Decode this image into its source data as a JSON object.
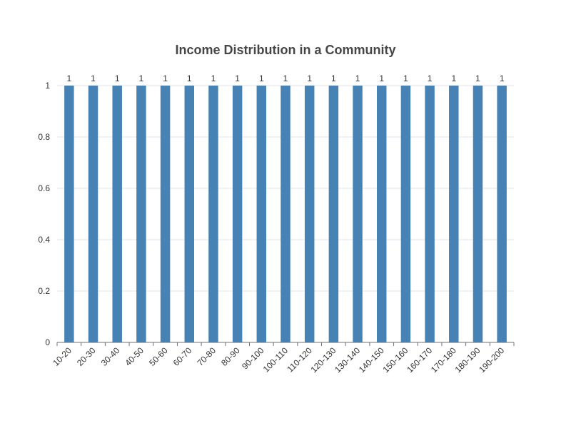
{
  "chart_data": {
    "type": "bar",
    "title": "Income Distribution in a Community",
    "xlabel": "",
    "ylabel": "",
    "categories": [
      "10-20",
      "20-30",
      "30-40",
      "40-50",
      "50-60",
      "60-70",
      "70-80",
      "80-90",
      "90-100",
      "100-110",
      "110-120",
      "120-130",
      "130-140",
      "140-150",
      "150-160",
      "160-170",
      "170-180",
      "180-190",
      "190-200"
    ],
    "values": [
      1,
      1,
      1,
      1,
      1,
      1,
      1,
      1,
      1,
      1,
      1,
      1,
      1,
      1,
      1,
      1,
      1,
      1,
      1
    ],
    "ylim": [
      0,
      1
    ],
    "yticks": [
      "0",
      "0.2",
      "0.4",
      "0.6",
      "0.8",
      "1"
    ],
    "grid": true,
    "data_labels": true,
    "bar_color": "#4682b4",
    "grid_color": "#e0e6f1",
    "axis_color": "#6e7079"
  }
}
